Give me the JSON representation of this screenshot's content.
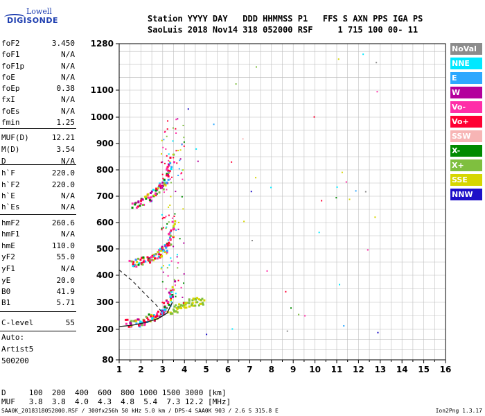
{
  "logo": {
    "line1": "Lowell",
    "line2": "DIGISONDE"
  },
  "header": {
    "line1": "Station YYYY DAY   DDD HHMMSS P1   FFS S AXN PPS IGA PS",
    "line2": "SaoLuis 2018 Nov14 318 052000 RSF     1 715 100 00- 11"
  },
  "params": [
    {
      "k": "foF2",
      "v": "3.450"
    },
    {
      "k": "foF1",
      "v": "N/A"
    },
    {
      "k": "foF1p",
      "v": "N/A"
    },
    {
      "k": "foE",
      "v": "N/A"
    },
    {
      "k": "foEp",
      "v": "0.38"
    },
    {
      "k": "fxI",
      "v": "N/A"
    },
    {
      "k": "foEs",
      "v": "N/A"
    },
    {
      "k": "fmin",
      "v": "1.25"
    },
    {
      "k": "MUF(D)",
      "v": "12.21"
    },
    {
      "k": "M(D)",
      "v": "3.54"
    },
    {
      "k": "D",
      "v": "N/A"
    },
    {
      "k": "h`F",
      "v": "220.0"
    },
    {
      "k": "h`F2",
      "v": "220.0"
    },
    {
      "k": "h`E",
      "v": "N/A"
    },
    {
      "k": "h`Es",
      "v": "N/A"
    },
    {
      "k": "hmF2",
      "v": "260.6"
    },
    {
      "k": "hmF1",
      "v": "N/A"
    },
    {
      "k": "hmE",
      "v": "110.0"
    },
    {
      "k": "yF2",
      "v": "55.0"
    },
    {
      "k": "yF1",
      "v": "N/A"
    },
    {
      "k": "yE",
      "v": "20.0"
    },
    {
      "k": "B0",
      "v": "41.9"
    },
    {
      "k": "B1",
      "v": "5.71"
    },
    {
      "k": "C-level",
      "v": "55"
    }
  ],
  "auto": {
    "l1": "Auto:",
    "l2": "Artist5",
    "l3": "500200"
  },
  "legend": [
    {
      "label": "NoVal",
      "color": "#8c8c8c"
    },
    {
      "label": "NNE",
      "color": "#00e8ff"
    },
    {
      "label": "E",
      "color": "#2da8ff"
    },
    {
      "label": "W",
      "color": "#b4009c"
    },
    {
      "label": "Vo-",
      "color": "#ff2ea8"
    },
    {
      "label": "Vo+",
      "color": "#ff0033"
    },
    {
      "label": "SSW",
      "color": "#f7b5b5"
    },
    {
      "label": "X-",
      "color": "#008a00"
    },
    {
      "label": "X+",
      "color": "#7fbf3f"
    },
    {
      "label": "SSE",
      "color": "#d6d600"
    },
    {
      "label": "NNW",
      "color": "#1e10c8"
    }
  ],
  "muf_table": {
    "d_row": "D     100  200  400  600  800 1000 1500 3000 [km]",
    "muf_row": "MUF   3.8  3.8  4.0  4.3  4.8  5.4  7.3 12.2 [MHz]"
  },
  "footer": "SAA0K_2018318052000.RSF / 300fx256h 50 kHz 5.0 km / DPS-4 SAA0K 903 / 2.6 S 315.8 E",
  "version": "Ion2Png 1.3.17",
  "chart_data": {
    "type": "scatter",
    "x_ticks": [
      1,
      2,
      3,
      4,
      5,
      6,
      7,
      8,
      9,
      10,
      11,
      12,
      13,
      14,
      15,
      16
    ],
    "y_ticks": [
      80,
      200,
      300,
      400,
      500,
      600,
      700,
      800,
      900,
      1000,
      1100,
      1280
    ],
    "xlim": [
      1,
      16
    ],
    "ylim": [
      80,
      1280
    ],
    "grid": true,
    "traces": [
      {
        "name": "O-trace 1st hop",
        "x": [
          1.3,
          1.7,
          2.0,
          2.3,
          2.6,
          2.9,
          3.1,
          3.3,
          3.45
        ],
        "y": [
          225,
          228,
          232,
          240,
          250,
          265,
          285,
          320,
          370
        ]
      },
      {
        "name": "O-trace 2nd hop",
        "x": [
          1.5,
          1.9,
          2.3,
          2.6,
          2.9,
          3.1,
          3.3,
          3.45
        ],
        "y": [
          450,
          455,
          462,
          475,
          490,
          510,
          545,
          610
        ]
      },
      {
        "name": "O-trace 3rd hop",
        "x": [
          1.6,
          2.0,
          2.4,
          2.7,
          3.0,
          3.2,
          3.4
        ],
        "y": [
          670,
          680,
          700,
          720,
          750,
          790,
          850
        ]
      },
      {
        "name": "X-trace 1st hop",
        "x": [
          3.3,
          3.6,
          3.9,
          4.2,
          4.5,
          4.8
        ],
        "y": [
          270,
          280,
          295,
          300,
          305,
          310
        ]
      }
    ],
    "profile_curve": {
      "x": [
        1.0,
        1.6,
        2.2,
        2.8,
        3.2,
        3.45
      ],
      "y": [
        210,
        215,
        225,
        240,
        260,
        300
      ]
    },
    "dashed_curve": {
      "x": [
        1.0,
        1.6,
        2.2,
        2.7,
        3.0
      ],
      "y": [
        420,
        380,
        330,
        290,
        260
      ]
    }
  }
}
